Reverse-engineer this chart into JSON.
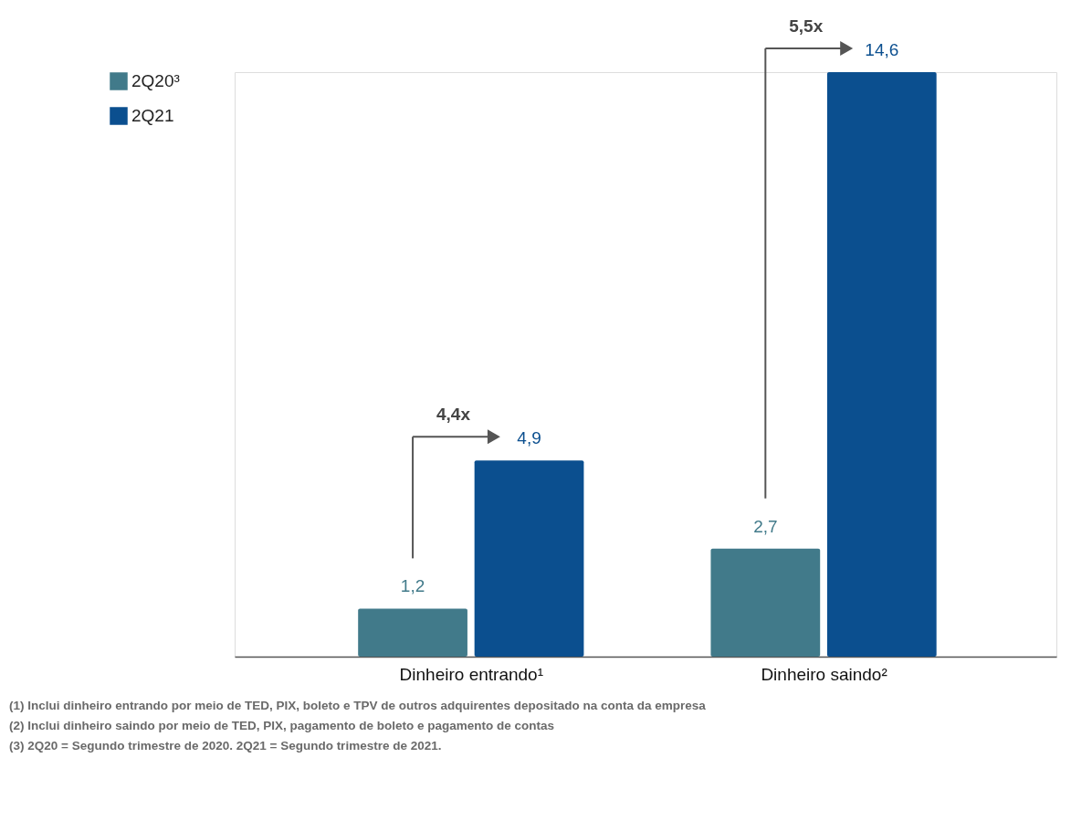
{
  "chart_data": {
    "type": "bar",
    "categories": [
      "Dinheiro entrando¹",
      "Dinheiro saindo²"
    ],
    "series": [
      {
        "name": "2Q20³",
        "color": "#417a8a",
        "values": [
          1.2,
          2.7
        ],
        "value_labels": [
          "1,2",
          "2,7"
        ]
      },
      {
        "name": "2Q21",
        "color": "#0b4f8f",
        "values": [
          4.9,
          14.6
        ],
        "value_labels": [
          "4,9",
          "14,6"
        ]
      }
    ],
    "ylim": [
      0,
      14.6
    ],
    "tick_labels": "x",
    "grid": false,
    "legend": "top left",
    "annotations": [
      "4,4x",
      "5,5x",
      "(1) Inclui dinheiro entrando por meio de TED, PIX, boleto e TPV de outros adquirentes depositado na conta da empresa",
      "(2) Inclui dinheiro saindo por meio de TED, PIX, pagamento de boleto e pagamento de contas",
      "(3) 2Q20 = Segundo trimestre de 2020. 2Q21 = Segundo trimestre de 2021."
    ]
  }
}
